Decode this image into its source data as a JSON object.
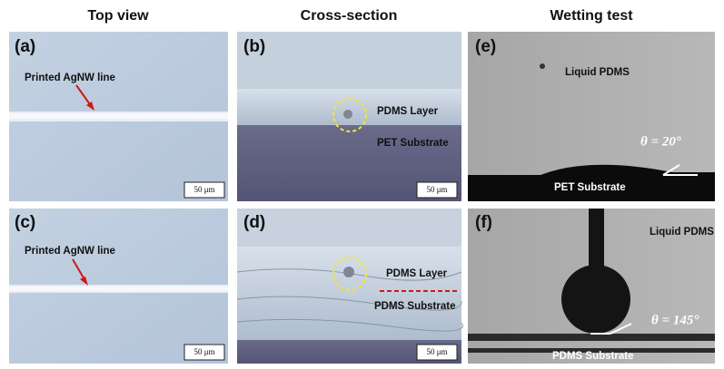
{
  "headers": [
    "Top view",
    "Cross-section",
    "Wetting test"
  ],
  "panels": {
    "a": {
      "label": "(a)",
      "annotation": "Printed AgNW line",
      "scale_bar": "50 μm"
    },
    "b": {
      "label": "(b)",
      "layer": "PDMS Layer",
      "substrate": "PET Substrate",
      "scale_bar": "50 μm"
    },
    "e": {
      "label": "(e)",
      "liquid": "Liquid PDMS",
      "angle": "θ = 20°",
      "substrate": "PET Substrate"
    },
    "c": {
      "label": "(c)",
      "annotation": "Printed AgNW line",
      "scale_bar": "50 μm"
    },
    "d": {
      "label": "(d)",
      "layer": "PDMS Layer",
      "substrate": "PDMS Substrate",
      "scale_bar": "50 μm"
    },
    "f": {
      "label": "(f)",
      "liquid": "Liquid PDMS",
      "angle": "θ = 145°",
      "substrate": "PDMS Substrate"
    }
  }
}
